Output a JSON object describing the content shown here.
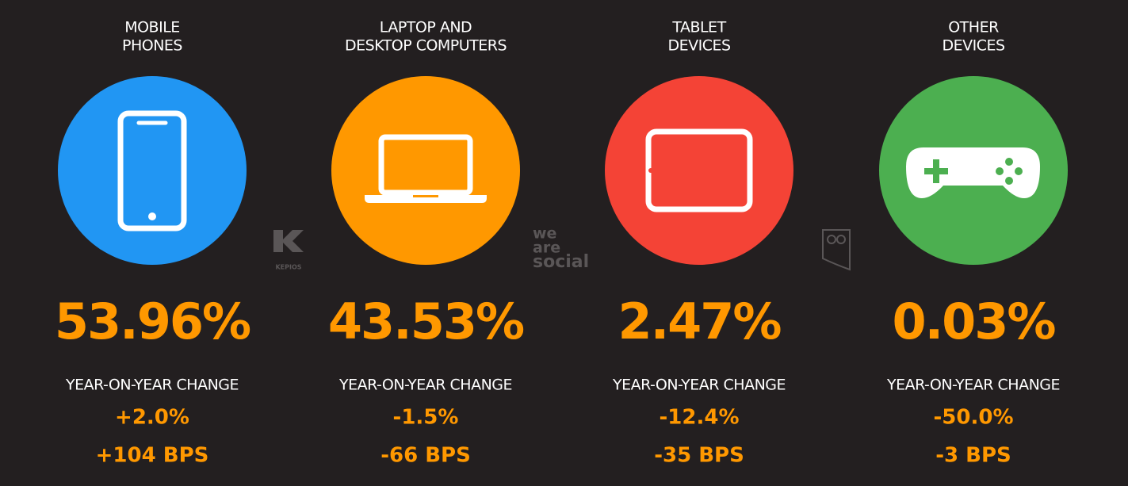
{
  "devices": [
    {
      "title": [
        "MOBILE",
        "PHONES"
      ],
      "share": "53.96%",
      "change_label": "YEAR-ON-YEAR CHANGE",
      "change_pct": "+2.0%",
      "change_bps": "+104 BPS"
    },
    {
      "title": [
        "LAPTOP AND",
        "DESKTOP COMPUTERS"
      ],
      "share": "43.53%",
      "change_label": "YEAR-ON-YEAR CHANGE",
      "change_pct": "-1.5%",
      "change_bps": "-66 BPS"
    },
    {
      "title": [
        "TABLET",
        "DEVICES"
      ],
      "share": "2.47%",
      "change_label": "YEAR-ON-YEAR CHANGE",
      "change_pct": "-12.4%",
      "change_bps": "-35 BPS"
    },
    {
      "title": [
        "OTHER",
        "DEVICES"
      ],
      "share": "0.03%",
      "change_label": "YEAR-ON-YEAR CHANGE",
      "change_pct": "-50.0%",
      "change_bps": "-3 BPS"
    }
  ],
  "logos": {
    "kepios": "KEPIOS",
    "we_are_social": [
      "we",
      "are",
      "social"
    ]
  }
}
